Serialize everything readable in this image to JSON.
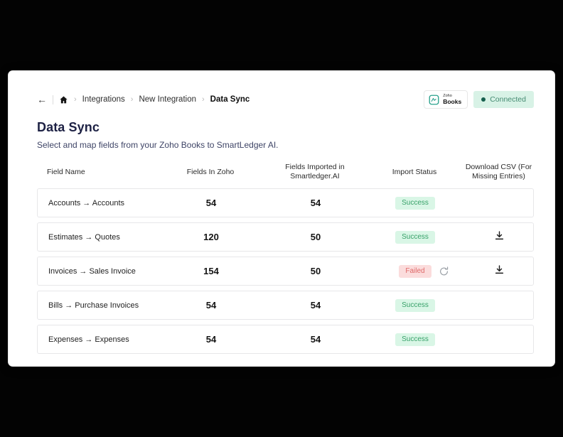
{
  "breadcrumb": {
    "back_label": "←",
    "separator": "›",
    "items": [
      {
        "label": "Integrations",
        "current": false
      },
      {
        "label": "New Integration",
        "current": false
      },
      {
        "label": "Data Sync",
        "current": true
      }
    ]
  },
  "connection": {
    "provider": {
      "name_top": "Zoho",
      "name_bottom": "Books",
      "icon_color": "#2aa18c"
    },
    "status": {
      "label": "Connected",
      "bg": "#d8f2e6",
      "text_color": "#458b72",
      "dot_color": "#155f4d"
    }
  },
  "page": {
    "title": "Data Sync",
    "subtitle": "Select and map fields from your Zoho Books to SmartLedger AI."
  },
  "table": {
    "columns": [
      "Field Name",
      "Fields In Zoho",
      "Fields Imported in Smartledger.AI",
      "Import Status",
      "Download CSV (For Missing Entries)"
    ],
    "rows": [
      {
        "field": "Accounts → Accounts",
        "fields_in_zoho": "54",
        "fields_imported": "54",
        "status": "Success",
        "retry": false,
        "download": false
      },
      {
        "field": "Estimates → Quotes",
        "fields_in_zoho": "120",
        "fields_imported": "50",
        "status": "Success",
        "retry": false,
        "download": true
      },
      {
        "field": "Invoices → Sales Invoice",
        "fields_in_zoho": "154",
        "fields_imported": "50",
        "status": "Failed",
        "retry": true,
        "download": true
      },
      {
        "field": "Bills → Purchase Invoices",
        "fields_in_zoho": "54",
        "fields_imported": "54",
        "status": "Success",
        "retry": false,
        "download": false
      },
      {
        "field": "Expenses → Expenses",
        "fields_in_zoho": "54",
        "fields_imported": "54",
        "status": "Success",
        "retry": false,
        "download": false
      }
    ],
    "status_styles": {
      "Success": {
        "bg": "#d9f6e6",
        "color": "#38a169"
      },
      "Failed": {
        "bg": "#fbdcdc",
        "color": "#df6a6a"
      }
    },
    "icon_colors": {
      "retry": "#9aa0a6",
      "download": "#1a1a1a"
    }
  }
}
